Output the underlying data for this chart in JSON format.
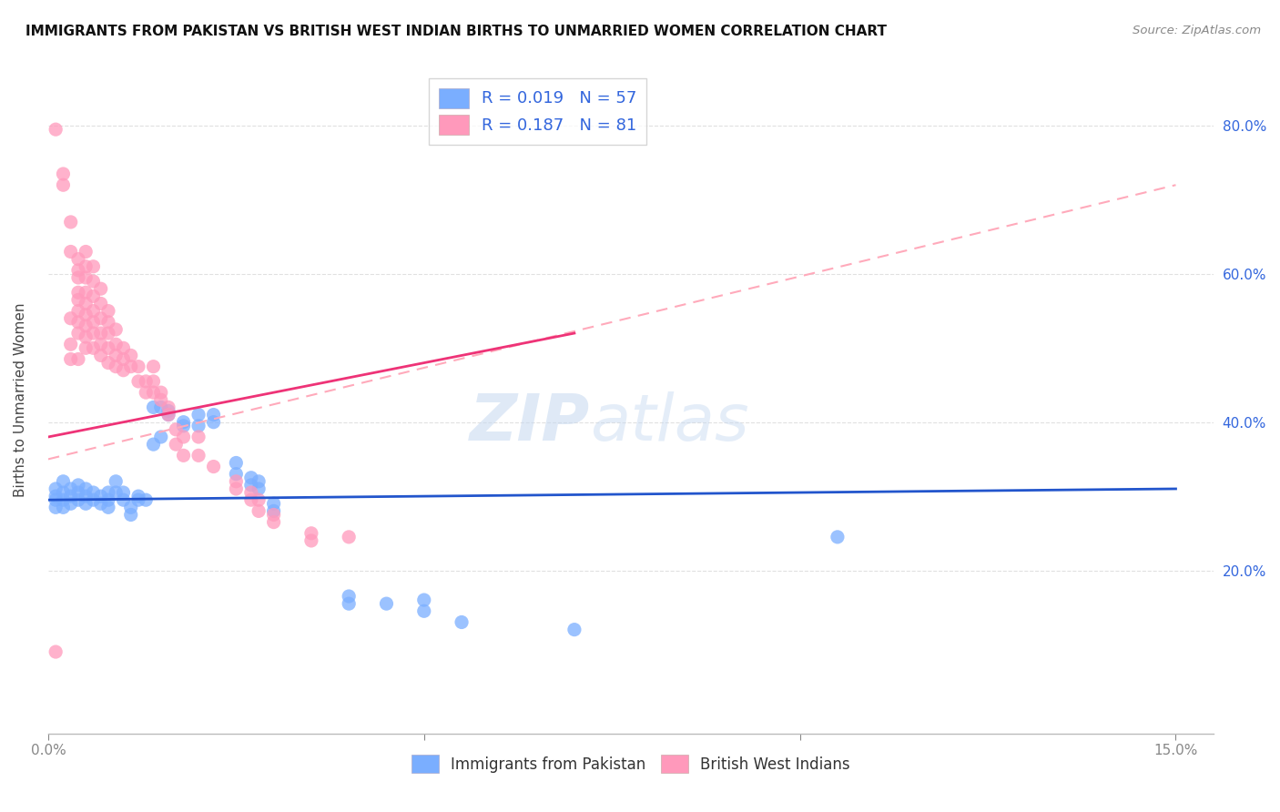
{
  "title": "IMMIGRANTS FROM PAKISTAN VS BRITISH WEST INDIAN BIRTHS TO UNMARRIED WOMEN CORRELATION CHART",
  "source": "Source: ZipAtlas.com",
  "ylabel": "Births to Unmarried Women",
  "legend_blue_r": "0.019",
  "legend_blue_n": "57",
  "legend_pink_r": "0.187",
  "legend_pink_n": "81",
  "legend_label_blue": "Immigrants from Pakistan",
  "legend_label_pink": "British West Indians",
  "blue_color": "#7aaeff",
  "pink_color": "#ff99bb",
  "blue_scatter": [
    [
      0.001,
      0.31
    ],
    [
      0.001,
      0.3
    ],
    [
      0.001,
      0.295
    ],
    [
      0.001,
      0.285
    ],
    [
      0.002,
      0.32
    ],
    [
      0.002,
      0.305
    ],
    [
      0.002,
      0.295
    ],
    [
      0.002,
      0.285
    ],
    [
      0.003,
      0.31
    ],
    [
      0.003,
      0.3
    ],
    [
      0.003,
      0.29
    ],
    [
      0.004,
      0.315
    ],
    [
      0.004,
      0.305
    ],
    [
      0.004,
      0.295
    ],
    [
      0.005,
      0.31
    ],
    [
      0.005,
      0.3
    ],
    [
      0.005,
      0.29
    ],
    [
      0.006,
      0.305
    ],
    [
      0.006,
      0.295
    ],
    [
      0.007,
      0.3
    ],
    [
      0.007,
      0.29
    ],
    [
      0.008,
      0.305
    ],
    [
      0.008,
      0.295
    ],
    [
      0.008,
      0.285
    ],
    [
      0.009,
      0.32
    ],
    [
      0.009,
      0.305
    ],
    [
      0.01,
      0.305
    ],
    [
      0.01,
      0.295
    ],
    [
      0.011,
      0.285
    ],
    [
      0.011,
      0.275
    ],
    [
      0.012,
      0.3
    ],
    [
      0.012,
      0.295
    ],
    [
      0.013,
      0.295
    ],
    [
      0.014,
      0.37
    ],
    [
      0.014,
      0.42
    ],
    [
      0.015,
      0.38
    ],
    [
      0.015,
      0.42
    ],
    [
      0.016,
      0.41
    ],
    [
      0.016,
      0.415
    ],
    [
      0.018,
      0.4
    ],
    [
      0.018,
      0.395
    ],
    [
      0.02,
      0.41
    ],
    [
      0.02,
      0.395
    ],
    [
      0.022,
      0.4
    ],
    [
      0.022,
      0.41
    ],
    [
      0.025,
      0.345
    ],
    [
      0.025,
      0.33
    ],
    [
      0.027,
      0.325
    ],
    [
      0.027,
      0.315
    ],
    [
      0.028,
      0.31
    ],
    [
      0.028,
      0.32
    ],
    [
      0.03,
      0.29
    ],
    [
      0.03,
      0.28
    ],
    [
      0.04,
      0.155
    ],
    [
      0.04,
      0.165
    ],
    [
      0.045,
      0.155
    ],
    [
      0.05,
      0.16
    ],
    [
      0.05,
      0.145
    ],
    [
      0.055,
      0.13
    ],
    [
      0.07,
      0.12
    ],
    [
      0.105,
      0.245
    ]
  ],
  "pink_scatter": [
    [
      0.001,
      0.795
    ],
    [
      0.002,
      0.72
    ],
    [
      0.003,
      0.67
    ],
    [
      0.003,
      0.63
    ],
    [
      0.004,
      0.62
    ],
    [
      0.004,
      0.605
    ],
    [
      0.004,
      0.595
    ],
    [
      0.004,
      0.575
    ],
    [
      0.004,
      0.565
    ],
    [
      0.004,
      0.55
    ],
    [
      0.004,
      0.535
    ],
    [
      0.004,
      0.52
    ],
    [
      0.005,
      0.63
    ],
    [
      0.005,
      0.61
    ],
    [
      0.005,
      0.595
    ],
    [
      0.005,
      0.575
    ],
    [
      0.005,
      0.56
    ],
    [
      0.005,
      0.545
    ],
    [
      0.005,
      0.53
    ],
    [
      0.005,
      0.515
    ],
    [
      0.005,
      0.5
    ],
    [
      0.006,
      0.61
    ],
    [
      0.006,
      0.59
    ],
    [
      0.006,
      0.57
    ],
    [
      0.006,
      0.55
    ],
    [
      0.006,
      0.535
    ],
    [
      0.006,
      0.52
    ],
    [
      0.007,
      0.58
    ],
    [
      0.007,
      0.56
    ],
    [
      0.007,
      0.54
    ],
    [
      0.007,
      0.52
    ],
    [
      0.007,
      0.505
    ],
    [
      0.008,
      0.55
    ],
    [
      0.008,
      0.535
    ],
    [
      0.008,
      0.52
    ],
    [
      0.008,
      0.5
    ],
    [
      0.009,
      0.525
    ],
    [
      0.009,
      0.505
    ],
    [
      0.009,
      0.49
    ],
    [
      0.009,
      0.475
    ],
    [
      0.01,
      0.5
    ],
    [
      0.01,
      0.485
    ],
    [
      0.01,
      0.47
    ],
    [
      0.011,
      0.49
    ],
    [
      0.011,
      0.475
    ],
    [
      0.012,
      0.475
    ],
    [
      0.012,
      0.455
    ],
    [
      0.013,
      0.455
    ],
    [
      0.013,
      0.44
    ],
    [
      0.014,
      0.475
    ],
    [
      0.014,
      0.455
    ],
    [
      0.015,
      0.44
    ],
    [
      0.015,
      0.43
    ],
    [
      0.016,
      0.42
    ],
    [
      0.016,
      0.41
    ],
    [
      0.017,
      0.39
    ],
    [
      0.017,
      0.37
    ],
    [
      0.018,
      0.38
    ],
    [
      0.02,
      0.38
    ],
    [
      0.02,
      0.355
    ],
    [
      0.022,
      0.34
    ],
    [
      0.025,
      0.32
    ],
    [
      0.025,
      0.31
    ],
    [
      0.027,
      0.305
    ],
    [
      0.027,
      0.295
    ],
    [
      0.028,
      0.295
    ],
    [
      0.028,
      0.28
    ],
    [
      0.03,
      0.275
    ],
    [
      0.03,
      0.265
    ],
    [
      0.035,
      0.25
    ],
    [
      0.035,
      0.24
    ],
    [
      0.04,
      0.245
    ],
    [
      0.003,
      0.485
    ],
    [
      0.004,
      0.485
    ],
    [
      0.003,
      0.505
    ],
    [
      0.006,
      0.5
    ],
    [
      0.007,
      0.49
    ],
    [
      0.008,
      0.48
    ],
    [
      0.014,
      0.44
    ],
    [
      0.018,
      0.355
    ],
    [
      0.002,
      0.735
    ],
    [
      0.003,
      0.54
    ],
    [
      0.001,
      0.09
    ]
  ],
  "blue_line": {
    "x0": 0.0,
    "y0": 0.295,
    "x1": 0.15,
    "y1": 0.31
  },
  "pink_solid_line": {
    "x0": 0.0,
    "y0": 0.38,
    "x1": 0.07,
    "y1": 0.52
  },
  "pink_dash_line": {
    "x0": 0.0,
    "y0": 0.35,
    "x1": 0.15,
    "y1": 0.72
  },
  "xlim": [
    0.0,
    0.155
  ],
  "ylim": [
    -0.02,
    0.88
  ],
  "x_ticks": [
    0.0,
    0.05,
    0.1,
    0.15
  ],
  "y_ticks": [
    0.2,
    0.4,
    0.6,
    0.8
  ],
  "y_tick_labels": [
    "20.0%",
    "40.0%",
    "60.0%",
    "80.0%"
  ],
  "watermark_zip": "ZIP",
  "watermark_atlas": "atlas",
  "background_color": "#ffffff",
  "grid_color": "#e0e0e0"
}
